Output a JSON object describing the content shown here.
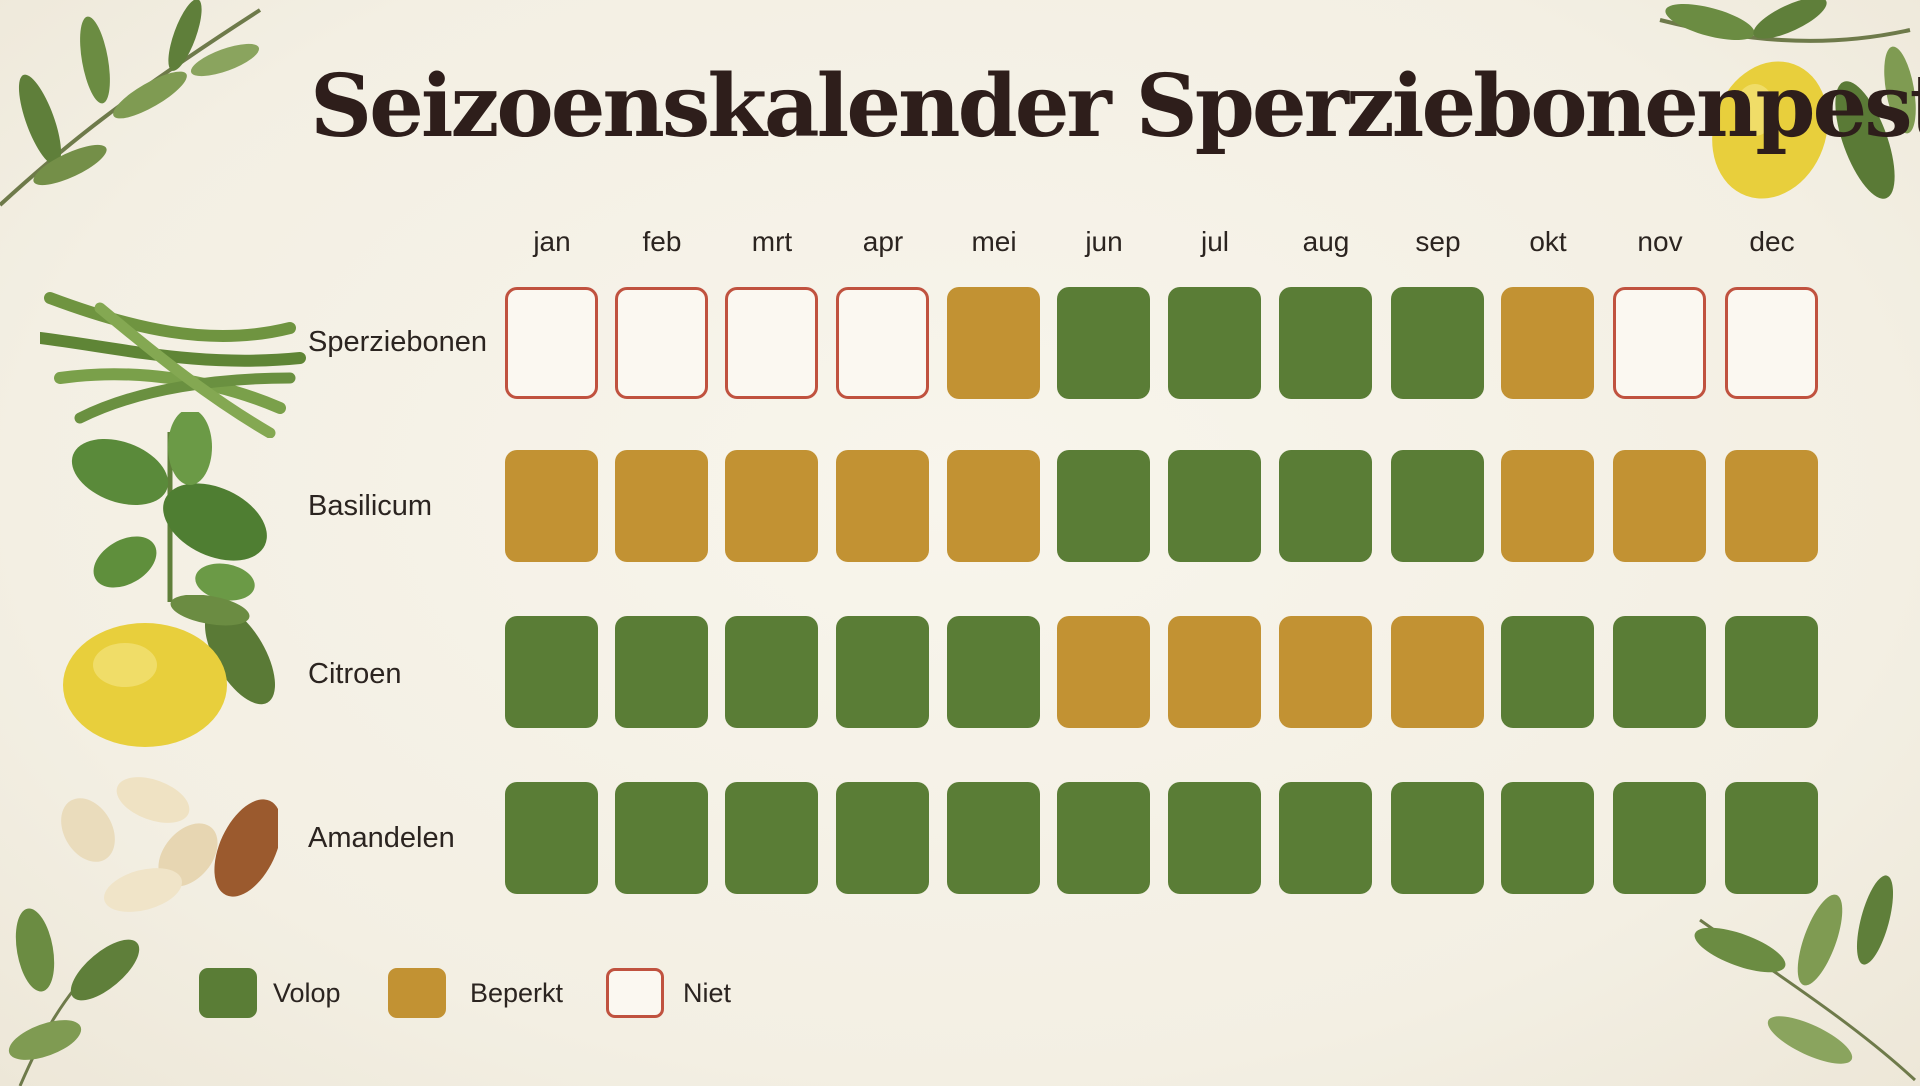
{
  "title": "Seizoenskalender Sperziebonenpesto",
  "chart_data": {
    "type": "heatmap",
    "title": "Seizoenskalender Sperziebonenpesto",
    "columns": [
      "jan",
      "feb",
      "mrt",
      "apr",
      "mei",
      "jun",
      "jul",
      "aug",
      "sep",
      "okt",
      "nov",
      "dec"
    ],
    "rows": [
      {
        "name": "Sperziebonen",
        "values": [
          "niet",
          "niet",
          "niet",
          "niet",
          "beperkt",
          "volop",
          "volop",
          "volop",
          "volop",
          "beperkt",
          "niet",
          "niet"
        ]
      },
      {
        "name": "Basilicum",
        "values": [
          "beperkt",
          "beperkt",
          "beperkt",
          "beperkt",
          "beperkt",
          "volop",
          "volop",
          "volop",
          "volop",
          "beperkt",
          "beperkt",
          "beperkt"
        ]
      },
      {
        "name": "Citroen",
        "values": [
          "volop",
          "volop",
          "volop",
          "volop",
          "volop",
          "beperkt",
          "beperkt",
          "beperkt",
          "beperkt",
          "volop",
          "volop",
          "volop"
        ]
      },
      {
        "name": "Amandelen",
        "values": [
          "volop",
          "volop",
          "volop",
          "volop",
          "volop",
          "volop",
          "volop",
          "volop",
          "volop",
          "volop",
          "volop",
          "volop"
        ]
      }
    ],
    "legend": [
      {
        "key": "volop",
        "label": "Volop",
        "color": "#5a7d36"
      },
      {
        "key": "beperkt",
        "label": "Beperkt",
        "color": "#c29233"
      },
      {
        "key": "niet",
        "label": "Niet",
        "color": "#c0523f"
      }
    ],
    "legend_position": "bottom-left"
  },
  "icons": [
    "olive-branch-icon",
    "lemon-branch-icon",
    "green-beans-icon",
    "basil-icon",
    "lemon-icon",
    "almonds-icon",
    "leaf-sprig-icon"
  ]
}
